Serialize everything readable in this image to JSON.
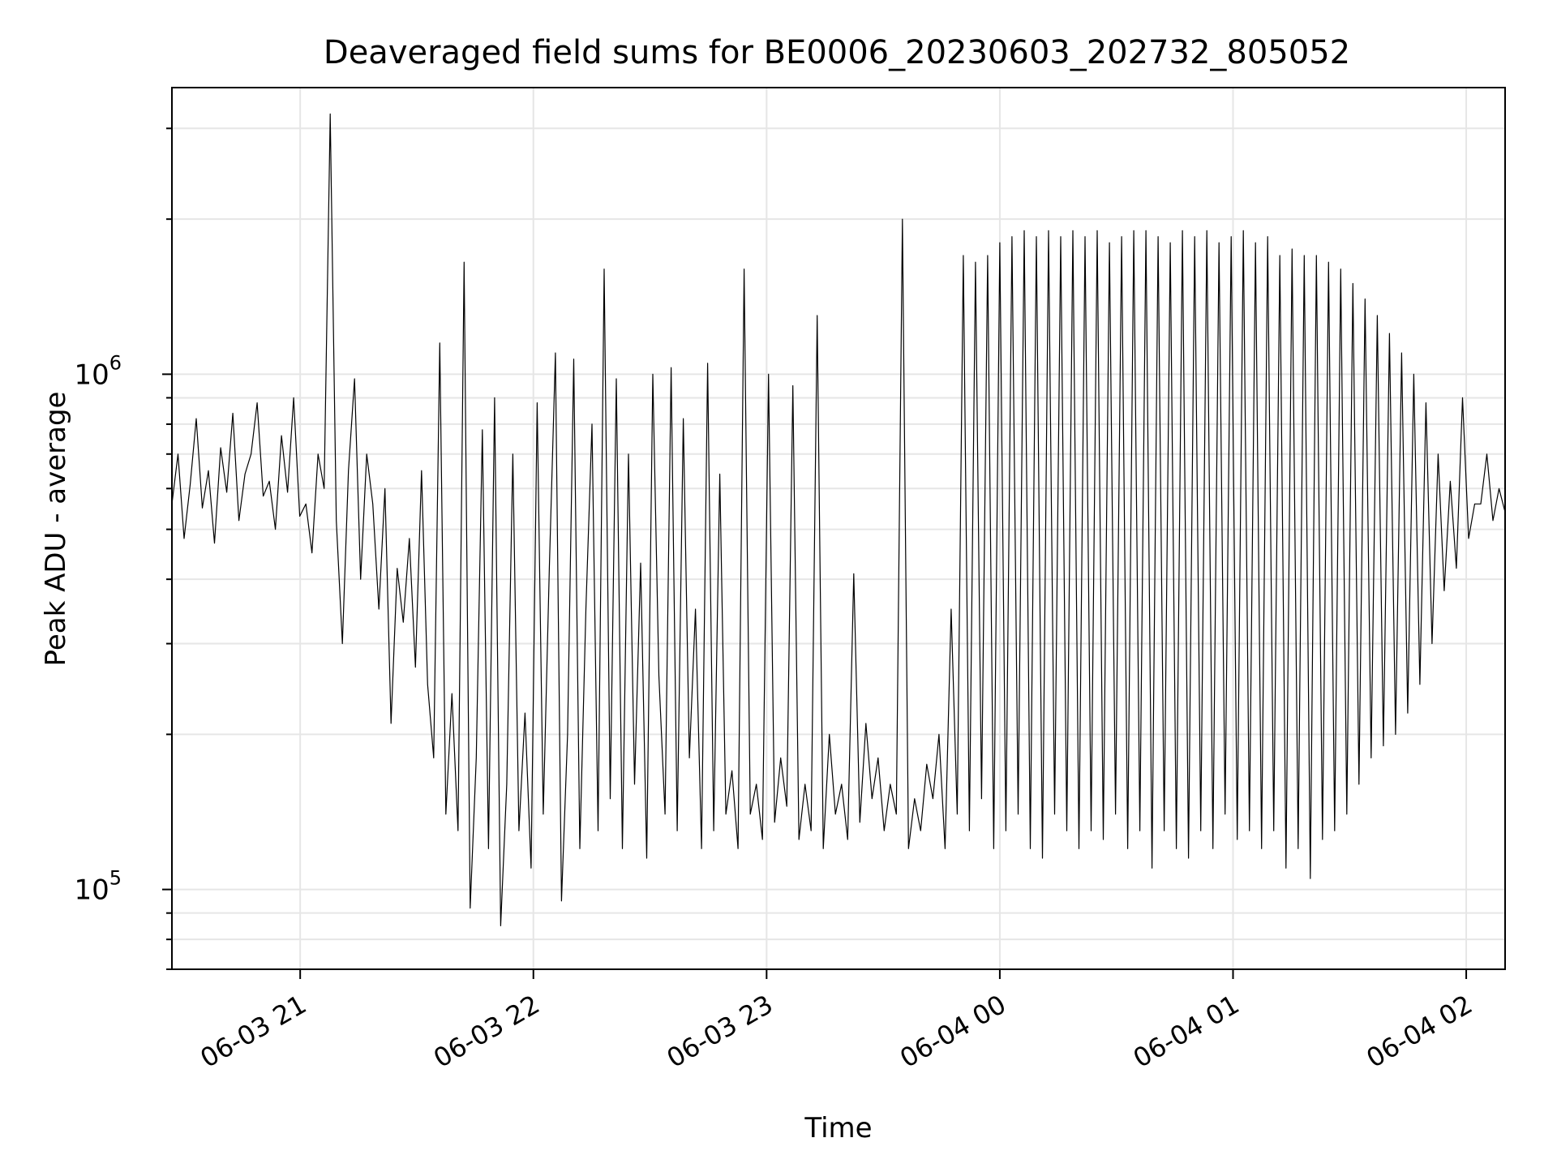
{
  "chart_data": {
    "type": "line",
    "title": "Deaveraged field sums for BE0006_20230603_202732_805052",
    "xlabel": "Time",
    "ylabel": "Peak ADU - average",
    "x_ticks": [
      "06-03 21",
      "06-03 22",
      "06-03 23",
      "06-04 00",
      "06-04 01",
      "06-04 02"
    ],
    "y_ticks": [
      {
        "label": "10",
        "exp": "5",
        "value": 100000
      },
      {
        "label": "10",
        "exp": "6",
        "value": 1000000
      }
    ],
    "xlim": [
      "2023-06-03 20:27",
      "2023-06-04 02:10"
    ],
    "ylim": [
      70000,
      3600000
    ],
    "y_scale": "log",
    "grid": true,
    "line_color": "#000000",
    "series": [
      {
        "time_start": "2023-06-03 20:27",
        "time_end": "2023-06-04 02:10",
        "values": [
          560000,
          700000,
          480000,
          610000,
          820000,
          550000,
          650000,
          470000,
          720000,
          590000,
          840000,
          520000,
          640000,
          700000,
          880000,
          580000,
          620000,
          500000,
          760000,
          590000,
          900000,
          530000,
          560000,
          450000,
          700000,
          600000,
          3200000,
          520000,
          300000,
          650000,
          980000,
          400000,
          700000,
          560000,
          350000,
          600000,
          210000,
          420000,
          330000,
          480000,
          270000,
          650000,
          250000,
          180000,
          1150000,
          140000,
          240000,
          130000,
          1650000,
          92000,
          180000,
          780000,
          120000,
          900000,
          85000,
          160000,
          700000,
          130000,
          220000,
          110000,
          880000,
          140000,
          420000,
          1100000,
          95000,
          200000,
          1070000,
          120000,
          350000,
          800000,
          130000,
          1600000,
          150000,
          980000,
          120000,
          700000,
          160000,
          430000,
          115000,
          1000000,
          260000,
          140000,
          1030000,
          130000,
          820000,
          180000,
          350000,
          120000,
          1050000,
          130000,
          640000,
          140000,
          170000,
          120000,
          1600000,
          140000,
          160000,
          125000,
          1000000,
          135000,
          180000,
          145000,
          950000,
          125000,
          160000,
          130000,
          1300000,
          120000,
          200000,
          140000,
          160000,
          125000,
          410000,
          135000,
          210000,
          150000,
          180000,
          130000,
          160000,
          140000,
          2000000,
          120000,
          150000,
          130000,
          175000,
          150000,
          200000,
          120000,
          350000,
          140000,
          1700000,
          130000,
          1650000,
          150000,
          1700000,
          120000,
          1800000,
          130000,
          1850000,
          140000,
          1900000,
          120000,
          1850000,
          115000,
          1900000,
          140000,
          1850000,
          130000,
          1900000,
          120000,
          1850000,
          130000,
          1900000,
          125000,
          1800000,
          140000,
          1850000,
          120000,
          1900000,
          130000,
          1900000,
          110000,
          1850000,
          130000,
          1800000,
          120000,
          1900000,
          115000,
          1850000,
          130000,
          1900000,
          120000,
          1800000,
          140000,
          1850000,
          125000,
          1900000,
          130000,
          1800000,
          120000,
          1850000,
          130000,
          1700000,
          110000,
          1750000,
          120000,
          1700000,
          105000,
          1700000,
          125000,
          1650000,
          130000,
          1600000,
          140000,
          1500000,
          160000,
          1400000,
          180000,
          1300000,
          190000,
          1200000,
          200000,
          1100000,
          220000,
          1000000,
          250000,
          880000,
          300000,
          700000,
          380000,
          620000,
          420000,
          900000,
          480000,
          560000,
          560000,
          700000,
          520000,
          600000,
          540000
        ]
      }
    ]
  }
}
